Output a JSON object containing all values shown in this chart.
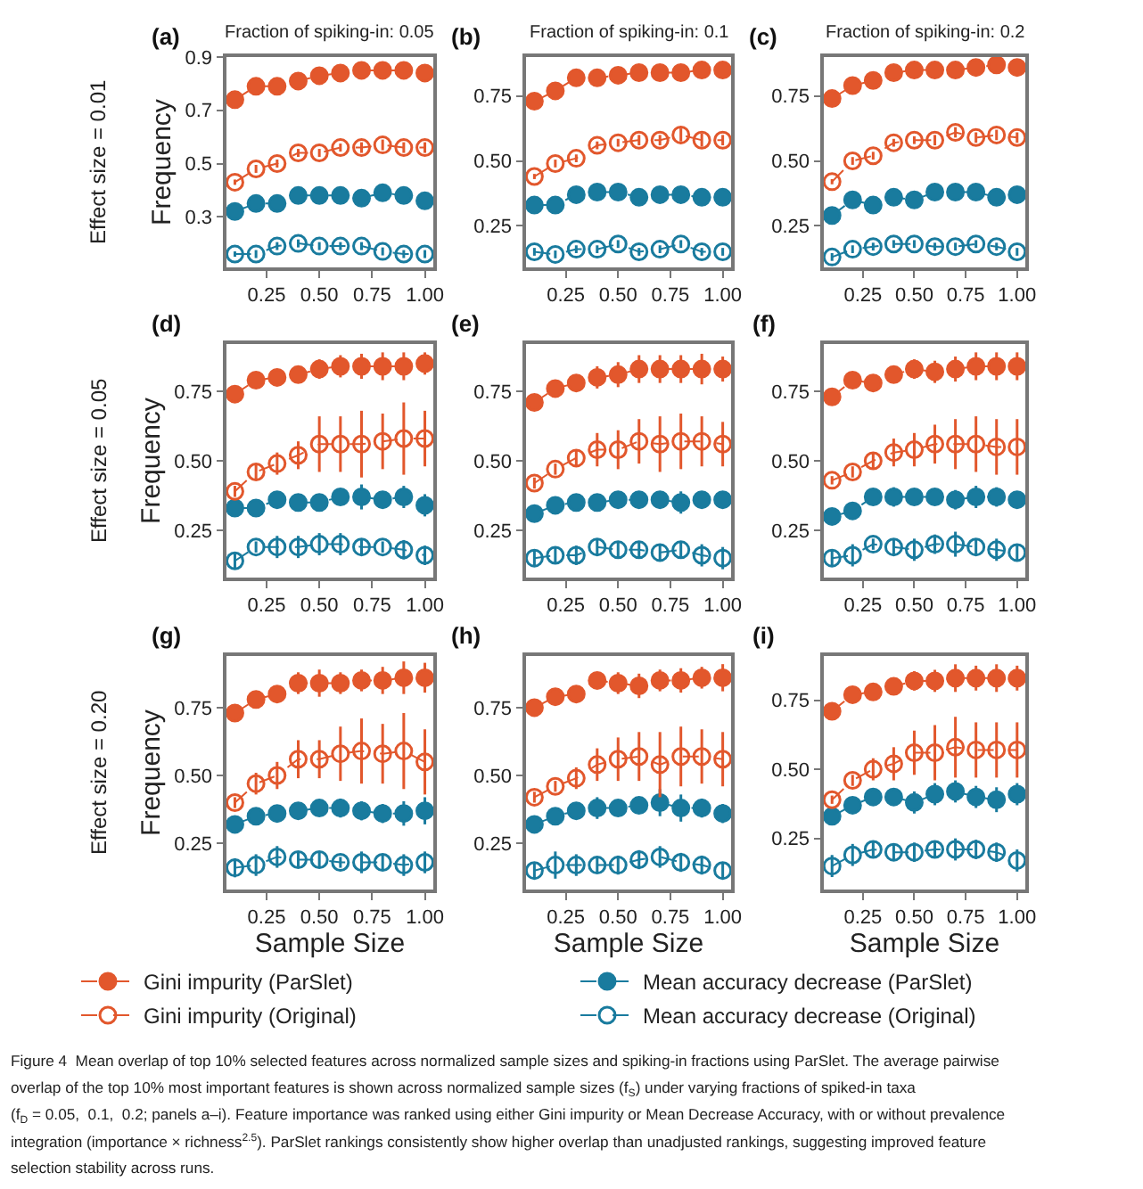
{
  "chart_data": [
    {
      "type": "line",
      "title": "Fraction of spiking-in: 0.05",
      "ylabel": "Frequency",
      "annotations": [
        "(a)",
        "Effect size = 0.01"
      ],
      "x": [
        0.1,
        0.2,
        0.3,
        0.4,
        0.5,
        0.6,
        0.7,
        0.8,
        0.9,
        1.0
      ],
      "xlim": [
        0.06,
        1.04
      ],
      "xticks": [
        {
          "value": 0.25,
          "label": "0.25"
        },
        {
          "value": 0.5,
          "label": "0.50"
        },
        {
          "value": 0.75,
          "label": "0.75"
        },
        {
          "value": 1,
          "label": "1.00"
        }
      ],
      "ylim": [
        0.11,
        0.9
      ],
      "yticks": [
        0.3,
        0.5,
        0.7,
        0.9
      ],
      "legend": "bottom",
      "line_style": "dashed",
      "series": [
        {
          "name": "Gini impurity (ParSlet)",
          "color": "#e2572c",
          "marker": "circle",
          "values": [
            0.74,
            0.79,
            0.79,
            0.81,
            0.83,
            0.84,
            0.85,
            0.85,
            0.85,
            0.84
          ]
        },
        {
          "name": "Mean accuracy decrease (ParSlet)",
          "color": "#197b9e",
          "marker": "circle",
          "values": [
            0.32,
            0.35,
            0.35,
            0.38,
            0.38,
            0.38,
            0.37,
            0.39,
            0.38,
            0.36
          ]
        },
        {
          "name": "Gini impurity (Original)",
          "color": "#e2572c",
          "marker": "circle-open",
          "values": [
            0.43,
            0.48,
            0.5,
            0.54,
            0.54,
            0.56,
            0.56,
            0.57,
            0.56,
            0.56
          ],
          "errors": [
            0.01,
            0.015,
            0.015,
            0.015,
            0.015,
            0.015,
            0.02,
            0.02,
            0.02,
            0.02
          ]
        },
        {
          "name": "Mean accuracy decrease (Original)",
          "color": "#197b9e",
          "marker": "circle-open",
          "values": [
            0.16,
            0.16,
            0.19,
            0.2,
            0.19,
            0.19,
            0.19,
            0.17,
            0.16,
            0.16
          ],
          "errors": [
            0.01,
            0.015,
            0.015,
            0.015,
            0.015,
            0.015,
            0.015,
            0.015,
            0.015,
            0.015
          ]
        }
      ]
    },
    {
      "type": "line",
      "title": "Fraction of spiking-in: 0.1",
      "annotations": [
        "(b)"
      ],
      "x": [
        0.1,
        0.2,
        0.3,
        0.4,
        0.5,
        0.6,
        0.7,
        0.8,
        0.9,
        1.0
      ],
      "xlim": [
        0.06,
        1.04
      ],
      "xticks": [
        {
          "value": 0.25,
          "label": "0.25"
        },
        {
          "value": 0.5,
          "label": "0.50"
        },
        {
          "value": 0.75,
          "label": "0.75"
        },
        {
          "value": 1,
          "label": "1.00"
        }
      ],
      "ylim": [
        0.09,
        0.9
      ],
      "yticks": [
        {
          "value": 0.25,
          "label": "0.25"
        },
        {
          "value": 0.5,
          "label": "0.50"
        },
        {
          "value": 0.75,
          "label": "0.75"
        }
      ],
      "line_style": "dashed",
      "series": [
        {
          "color": "#e2572c",
          "marker": "circle",
          "values": [
            0.73,
            0.77,
            0.82,
            0.82,
            0.83,
            0.84,
            0.84,
            0.84,
            0.85,
            0.85
          ]
        },
        {
          "color": "#197b9e",
          "marker": "circle",
          "values": [
            0.33,
            0.33,
            0.37,
            0.38,
            0.38,
            0.36,
            0.37,
            0.37,
            0.36,
            0.36
          ]
        },
        {
          "color": "#e2572c",
          "marker": "circle-open",
          "values": [
            0.44,
            0.49,
            0.51,
            0.56,
            0.57,
            0.58,
            0.58,
            0.6,
            0.58,
            0.58
          ],
          "errors": [
            0.01,
            0.015,
            0.015,
            0.015,
            0.015,
            0.02,
            0.02,
            0.025,
            0.025,
            0.02
          ]
        },
        {
          "color": "#197b9e",
          "marker": "circle-open",
          "values": [
            0.15,
            0.14,
            0.16,
            0.16,
            0.18,
            0.15,
            0.16,
            0.18,
            0.15,
            0.15
          ],
          "errors": [
            0.015,
            0.015,
            0.015,
            0.015,
            0.015,
            0.015,
            0.015,
            0.015,
            0.015,
            0.015
          ]
        }
      ]
    },
    {
      "type": "line",
      "title": "Fraction of spiking-in: 0.2",
      "annotations": [
        "(c)"
      ],
      "x": [
        0.1,
        0.2,
        0.3,
        0.4,
        0.5,
        0.6,
        0.7,
        0.8,
        0.9,
        1.0
      ],
      "xlim": [
        0.06,
        1.04
      ],
      "xticks": [
        {
          "value": 0.25,
          "label": "0.25"
        },
        {
          "value": 0.5,
          "label": "0.50"
        },
        {
          "value": 0.75,
          "label": "0.75"
        },
        {
          "value": 1,
          "label": "1.00"
        }
      ],
      "ylim": [
        0.09,
        0.9
      ],
      "yticks": [
        {
          "value": 0.25,
          "label": "0.25"
        },
        {
          "value": 0.5,
          "label": "0.50"
        },
        {
          "value": 0.75,
          "label": "0.75"
        }
      ],
      "line_style": "dashed",
      "series": [
        {
          "color": "#e2572c",
          "marker": "circle",
          "values": [
            0.74,
            0.79,
            0.81,
            0.84,
            0.85,
            0.85,
            0.85,
            0.86,
            0.87,
            0.86
          ]
        },
        {
          "color": "#197b9e",
          "marker": "circle",
          "values": [
            0.29,
            0.35,
            0.33,
            0.36,
            0.35,
            0.38,
            0.38,
            0.38,
            0.36,
            0.37
          ]
        },
        {
          "color": "#e2572c",
          "marker": "circle-open",
          "values": [
            0.42,
            0.5,
            0.52,
            0.57,
            0.58,
            0.58,
            0.61,
            0.59,
            0.6,
            0.59
          ],
          "errors": [
            0.01,
            0.015,
            0.015,
            0.015,
            0.015,
            0.02,
            0.02,
            0.02,
            0.02,
            0.02
          ]
        },
        {
          "color": "#197b9e",
          "marker": "circle-open",
          "values": [
            0.13,
            0.16,
            0.17,
            0.18,
            0.18,
            0.17,
            0.17,
            0.18,
            0.17,
            0.15
          ],
          "errors": [
            0.015,
            0.015,
            0.015,
            0.015,
            0.015,
            0.015,
            0.015,
            0.015,
            0.015,
            0.015
          ]
        }
      ]
    },
    {
      "type": "line",
      "ylabel": "Frequency",
      "annotations": [
        "(d)",
        "Effect size = 0.05"
      ],
      "x": [
        0.1,
        0.2,
        0.3,
        0.4,
        0.5,
        0.6,
        0.7,
        0.8,
        0.9,
        1.0
      ],
      "xlim": [
        0.06,
        1.04
      ],
      "xticks": [
        {
          "value": 0.25,
          "label": "0.25"
        },
        {
          "value": 0.5,
          "label": "0.50"
        },
        {
          "value": 0.75,
          "label": "0.75"
        },
        {
          "value": 1,
          "label": "1.00"
        }
      ],
      "ylim": [
        0.08,
        0.92
      ],
      "yticks": [
        {
          "value": 0.25,
          "label": "0.25"
        },
        {
          "value": 0.5,
          "label": "0.50"
        },
        {
          "value": 0.75,
          "label": "0.75"
        }
      ],
      "line_style": "dashed",
      "series": [
        {
          "color": "#e2572c",
          "marker": "circle",
          "values": [
            0.74,
            0.79,
            0.8,
            0.81,
            0.83,
            0.84,
            0.84,
            0.84,
            0.84,
            0.85
          ],
          "errors": [
            0.01,
            0.01,
            0.025,
            0.03,
            0.035,
            0.04,
            0.045,
            0.05,
            0.05,
            0.04
          ]
        },
        {
          "color": "#197b9e",
          "marker": "circle",
          "values": [
            0.33,
            0.33,
            0.36,
            0.35,
            0.35,
            0.37,
            0.37,
            0.36,
            0.37,
            0.34
          ],
          "errors": [
            0.01,
            0.01,
            0.02,
            0.03,
            0.02,
            0.03,
            0.045,
            0.03,
            0.04,
            0.04
          ]
        },
        {
          "color": "#e2572c",
          "marker": "circle-open",
          "values": [
            0.39,
            0.46,
            0.49,
            0.52,
            0.56,
            0.56,
            0.56,
            0.57,
            0.58,
            0.58
          ],
          "errors": [
            0.02,
            0.03,
            0.04,
            0.05,
            0.1,
            0.1,
            0.12,
            0.1,
            0.13,
            0.1
          ]
        },
        {
          "color": "#197b9e",
          "marker": "circle-open",
          "values": [
            0.14,
            0.19,
            0.19,
            0.19,
            0.2,
            0.2,
            0.19,
            0.19,
            0.18,
            0.16
          ],
          "errors": [
            0.03,
            0.02,
            0.04,
            0.04,
            0.04,
            0.04,
            0.03,
            0.02,
            0.035,
            0.035
          ]
        }
      ]
    },
    {
      "type": "line",
      "annotations": [
        "(e)"
      ],
      "x": [
        0.1,
        0.2,
        0.3,
        0.4,
        0.5,
        0.6,
        0.7,
        0.8,
        0.9,
        1.0
      ],
      "xlim": [
        0.06,
        1.04
      ],
      "xticks": [
        {
          "value": 0.25,
          "label": "0.25"
        },
        {
          "value": 0.5,
          "label": "0.50"
        },
        {
          "value": 0.75,
          "label": "0.75"
        },
        {
          "value": 1,
          "label": "1.00"
        }
      ],
      "ylim": [
        0.08,
        0.92
      ],
      "yticks": [
        {
          "value": 0.25,
          "label": "0.25"
        },
        {
          "value": 0.5,
          "label": "0.50"
        },
        {
          "value": 0.75,
          "label": "0.75"
        }
      ],
      "line_style": "dashed",
      "series": [
        {
          "color": "#e2572c",
          "marker": "circle",
          "values": [
            0.71,
            0.76,
            0.78,
            0.8,
            0.81,
            0.83,
            0.83,
            0.83,
            0.83,
            0.83
          ],
          "errors": [
            0.01,
            0.01,
            0.025,
            0.04,
            0.045,
            0.05,
            0.05,
            0.05,
            0.055,
            0.045
          ]
        },
        {
          "color": "#197b9e",
          "marker": "circle",
          "values": [
            0.31,
            0.34,
            0.35,
            0.35,
            0.36,
            0.36,
            0.36,
            0.35,
            0.36,
            0.36
          ],
          "errors": [
            0.01,
            0.01,
            0.01,
            0.02,
            0.03,
            0.025,
            0.025,
            0.04,
            0.03,
            0.03
          ]
        },
        {
          "color": "#e2572c",
          "marker": "circle-open",
          "values": [
            0.42,
            0.47,
            0.51,
            0.54,
            0.54,
            0.57,
            0.56,
            0.57,
            0.57,
            0.56
          ],
          "errors": [
            0.02,
            0.02,
            0.03,
            0.06,
            0.07,
            0.08,
            0.1,
            0.1,
            0.09,
            0.08
          ]
        },
        {
          "color": "#197b9e",
          "marker": "circle-open",
          "values": [
            0.15,
            0.16,
            0.16,
            0.19,
            0.18,
            0.18,
            0.17,
            0.18,
            0.16,
            0.15
          ],
          "errors": [
            0.03,
            0.03,
            0.035,
            0.03,
            0.03,
            0.03,
            0.03,
            0.03,
            0.04,
            0.04
          ]
        }
      ]
    },
    {
      "type": "line",
      "annotations": [
        "(f)"
      ],
      "x": [
        0.1,
        0.2,
        0.3,
        0.4,
        0.5,
        0.6,
        0.7,
        0.8,
        0.9,
        1.0
      ],
      "xlim": [
        0.06,
        1.04
      ],
      "xticks": [
        {
          "value": 0.25,
          "label": "0.25"
        },
        {
          "value": 0.5,
          "label": "0.50"
        },
        {
          "value": 0.75,
          "label": "0.75"
        },
        {
          "value": 1,
          "label": "1.00"
        }
      ],
      "ylim": [
        0.08,
        0.92
      ],
      "yticks": [
        {
          "value": 0.25,
          "label": "0.25"
        },
        {
          "value": 0.5,
          "label": "0.50"
        },
        {
          "value": 0.75,
          "label": "0.75"
        }
      ],
      "line_style": "dashed",
      "series": [
        {
          "color": "#e2572c",
          "marker": "circle",
          "values": [
            0.73,
            0.79,
            0.78,
            0.81,
            0.83,
            0.82,
            0.83,
            0.84,
            0.84,
            0.84
          ],
          "errors": [
            0.01,
            0.02,
            0.02,
            0.03,
            0.035,
            0.04,
            0.045,
            0.05,
            0.05,
            0.05
          ]
        },
        {
          "color": "#197b9e",
          "marker": "circle",
          "values": [
            0.3,
            0.32,
            0.37,
            0.37,
            0.37,
            0.37,
            0.36,
            0.37,
            0.37,
            0.36
          ],
          "errors": [
            0.015,
            0.01,
            0.02,
            0.035,
            0.03,
            0.03,
            0.035,
            0.04,
            0.035,
            0.03
          ]
        },
        {
          "color": "#e2572c",
          "marker": "circle-open",
          "values": [
            0.43,
            0.46,
            0.5,
            0.53,
            0.54,
            0.56,
            0.56,
            0.56,
            0.55,
            0.55
          ],
          "errors": [
            0.015,
            0.02,
            0.03,
            0.05,
            0.06,
            0.07,
            0.09,
            0.1,
            0.1,
            0.1
          ]
        },
        {
          "color": "#197b9e",
          "marker": "circle-open",
          "values": [
            0.15,
            0.16,
            0.2,
            0.19,
            0.18,
            0.2,
            0.2,
            0.19,
            0.18,
            0.17
          ],
          "errors": [
            0.03,
            0.04,
            0.02,
            0.03,
            0.04,
            0.035,
            0.045,
            0.03,
            0.04,
            0.03
          ]
        }
      ]
    },
    {
      "type": "line",
      "ylabel": "Frequency",
      "xlabel": "Sample Size",
      "annotations": [
        "(g)",
        "Effect size = 0.20"
      ],
      "x": [
        0.1,
        0.2,
        0.3,
        0.4,
        0.5,
        0.6,
        0.7,
        0.8,
        0.9,
        1.0
      ],
      "xlim": [
        0.06,
        1.04
      ],
      "xticks": [
        {
          "value": 0.25,
          "label": "0.25"
        },
        {
          "value": 0.5,
          "label": "0.50"
        },
        {
          "value": 0.75,
          "label": "0.75"
        },
        {
          "value": 1,
          "label": "1.00"
        }
      ],
      "ylim": [
        0.08,
        0.94
      ],
      "yticks": [
        {
          "value": 0.25,
          "label": "0.25"
        },
        {
          "value": 0.5,
          "label": "0.50"
        },
        {
          "value": 0.75,
          "label": "0.75"
        }
      ],
      "line_style": "dashed",
      "series": [
        {
          "color": "#e2572c",
          "marker": "circle",
          "values": [
            0.73,
            0.78,
            0.8,
            0.84,
            0.84,
            0.84,
            0.85,
            0.85,
            0.86,
            0.86
          ],
          "errors": [
            0.01,
            0.01,
            0.025,
            0.04,
            0.05,
            0.04,
            0.04,
            0.05,
            0.06,
            0.055
          ]
        },
        {
          "color": "#197b9e",
          "marker": "circle",
          "values": [
            0.32,
            0.35,
            0.36,
            0.37,
            0.38,
            0.38,
            0.37,
            0.36,
            0.36,
            0.37
          ],
          "errors": [
            0.01,
            0.015,
            0.01,
            0.02,
            0.02,
            0.035,
            0.035,
            0.035,
            0.045,
            0.05
          ]
        },
        {
          "color": "#e2572c",
          "marker": "circle-open",
          "values": [
            0.4,
            0.47,
            0.5,
            0.56,
            0.56,
            0.58,
            0.59,
            0.58,
            0.59,
            0.55
          ],
          "errors": [
            0.02,
            0.04,
            0.05,
            0.07,
            0.07,
            0.1,
            0.12,
            0.11,
            0.14,
            0.12
          ]
        },
        {
          "color": "#197b9e",
          "marker": "circle-open",
          "values": [
            0.16,
            0.17,
            0.2,
            0.19,
            0.19,
            0.18,
            0.18,
            0.18,
            0.17,
            0.18
          ],
          "errors": [
            0.035,
            0.04,
            0.04,
            0.03,
            0.03,
            0.02,
            0.04,
            0.03,
            0.04,
            0.04
          ]
        }
      ]
    },
    {
      "type": "line",
      "xlabel": "Sample Size",
      "annotations": [
        "(h)"
      ],
      "x": [
        0.1,
        0.2,
        0.3,
        0.4,
        0.5,
        0.6,
        0.7,
        0.8,
        0.9,
        1.0
      ],
      "xlim": [
        0.06,
        1.04
      ],
      "xticks": [
        {
          "value": 0.25,
          "label": "0.25"
        },
        {
          "value": 0.5,
          "label": "0.50"
        },
        {
          "value": 0.75,
          "label": "0.75"
        },
        {
          "value": 1,
          "label": "1.00"
        }
      ],
      "ylim": [
        0.08,
        0.94
      ],
      "yticks": [
        {
          "value": 0.25,
          "label": "0.25"
        },
        {
          "value": 0.5,
          "label": "0.50"
        },
        {
          "value": 0.75,
          "label": "0.75"
        }
      ],
      "line_style": "dashed",
      "series": [
        {
          "color": "#e2572c",
          "marker": "circle",
          "values": [
            0.75,
            0.79,
            0.8,
            0.85,
            0.84,
            0.83,
            0.85,
            0.85,
            0.86,
            0.86
          ],
          "errors": [
            0.01,
            0.02,
            0.02,
            0.03,
            0.04,
            0.045,
            0.04,
            0.045,
            0.04,
            0.05
          ]
        },
        {
          "color": "#197b9e",
          "marker": "circle",
          "values": [
            0.32,
            0.35,
            0.37,
            0.38,
            0.38,
            0.39,
            0.4,
            0.38,
            0.38,
            0.36
          ],
          "errors": [
            0.01,
            0.01,
            0.03,
            0.04,
            0.03,
            0.03,
            0.05,
            0.05,
            0.035,
            0.035
          ]
        },
        {
          "color": "#e2572c",
          "marker": "circle-open",
          "values": [
            0.42,
            0.46,
            0.49,
            0.54,
            0.56,
            0.57,
            0.54,
            0.57,
            0.57,
            0.56
          ],
          "errors": [
            0.02,
            0.02,
            0.04,
            0.06,
            0.08,
            0.09,
            0.12,
            0.11,
            0.1,
            0.1
          ]
        },
        {
          "color": "#197b9e",
          "marker": "circle-open",
          "values": [
            0.15,
            0.17,
            0.17,
            0.17,
            0.17,
            0.19,
            0.2,
            0.18,
            0.17,
            0.15
          ],
          "errors": [
            0.03,
            0.05,
            0.04,
            0.03,
            0.035,
            0.035,
            0.04,
            0.035,
            0.035,
            0.03
          ]
        }
      ]
    },
    {
      "type": "line",
      "xlabel": "Sample Size",
      "annotations": [
        "(i)"
      ],
      "x": [
        0.1,
        0.2,
        0.3,
        0.4,
        0.5,
        0.6,
        0.7,
        0.8,
        0.9,
        1.0
      ],
      "xlim": [
        0.06,
        1.04
      ],
      "xticks": [
        {
          "value": 0.25,
          "label": "0.25"
        },
        {
          "value": 0.5,
          "label": "0.50"
        },
        {
          "value": 0.75,
          "label": "0.75"
        },
        {
          "value": 1,
          "label": "1.00"
        }
      ],
      "ylim": [
        0.065,
        0.91
      ],
      "yticks": [
        {
          "value": 0.25,
          "label": "0.25"
        },
        {
          "value": 0.5,
          "label": "0.50"
        },
        {
          "value": 0.75,
          "label": "0.75"
        }
      ],
      "line_style": "dashed",
      "series": [
        {
          "color": "#e2572c",
          "marker": "circle",
          "values": [
            0.71,
            0.77,
            0.78,
            0.8,
            0.82,
            0.82,
            0.83,
            0.83,
            0.83,
            0.83
          ],
          "errors": [
            0.01,
            0.01,
            0.02,
            0.03,
            0.035,
            0.04,
            0.05,
            0.045,
            0.05,
            0.045
          ]
        },
        {
          "color": "#197b9e",
          "marker": "circle",
          "values": [
            0.33,
            0.37,
            0.4,
            0.4,
            0.38,
            0.41,
            0.42,
            0.4,
            0.39,
            0.41
          ],
          "errors": [
            0.01,
            0.02,
            0.02,
            0.025,
            0.04,
            0.04,
            0.04,
            0.04,
            0.045,
            0.04
          ]
        },
        {
          "color": "#e2572c",
          "marker": "circle-open",
          "values": [
            0.39,
            0.46,
            0.5,
            0.52,
            0.56,
            0.56,
            0.58,
            0.57,
            0.57,
            0.57
          ],
          "errors": [
            0.015,
            0.02,
            0.04,
            0.06,
            0.08,
            0.1,
            0.11,
            0.1,
            0.1,
            0.1
          ]
        },
        {
          "color": "#197b9e",
          "marker": "circle-open",
          "values": [
            0.15,
            0.19,
            0.21,
            0.2,
            0.2,
            0.21,
            0.21,
            0.21,
            0.2,
            0.17
          ],
          "errors": [
            0.04,
            0.04,
            0.03,
            0.03,
            0.035,
            0.03,
            0.04,
            0.035,
            0.035,
            0.04
          ]
        }
      ]
    },
    {
      "type": "other",
      "annotations": [
        "Figure 4  Mean overlap of top 10% selected features across normalized sample sizes and spiking-in fractions using ParSlet. The average pairwise",
        "overlap of the top 10% most important features is shown across normalized sample sizes (f$_{S}$) under varying fractions of spiked-in taxa",
        "(f$_{D}$ = 0.05,  0.1,  0.2; panels a–i). Feature importance was ranked using either Gini impurity or Mean Decrease Accuracy, with or without prevalence",
        "integration (importance × richness$^{2.5}$). ParSlet rankings consistently show higher overlap than unadjusted rankings, suggesting improved feature",
        "selection stability across runs."
      ]
    }
  ]
}
